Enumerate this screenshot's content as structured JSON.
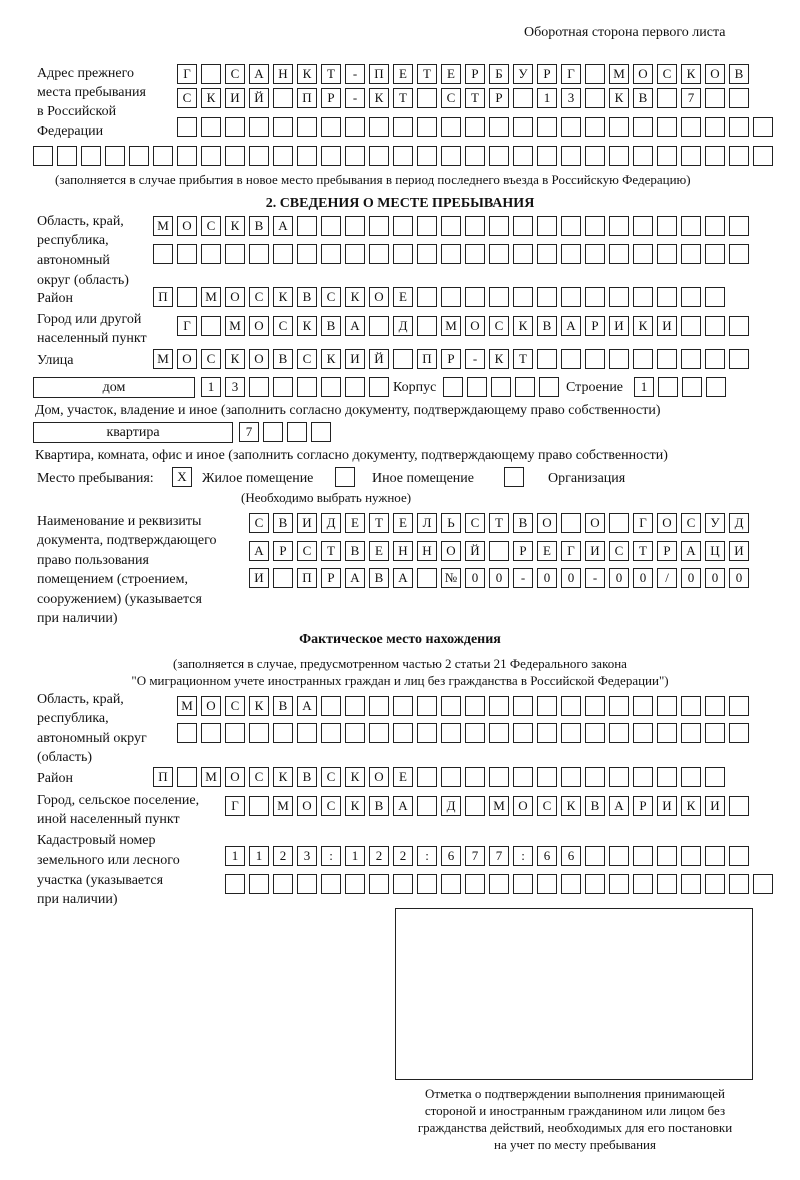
{
  "header": "Оборотная сторона первого листа",
  "prev_address": {
    "label": [
      "Адрес прежнего",
      "места пребывания",
      "в Российской",
      "Федерации"
    ],
    "rows": [
      [
        "Г",
        " ",
        "С",
        "А",
        "Н",
        "К",
        "Т",
        "-",
        "П",
        "Е",
        "Т",
        "Е",
        "Р",
        "Б",
        "У",
        "Р",
        "Г",
        " ",
        "М",
        "О",
        "С",
        "К",
        "О",
        "В"
      ],
      [
        "С",
        "К",
        "И",
        "Й",
        " ",
        "П",
        "Р",
        "-",
        "К",
        "Т",
        " ",
        "С",
        "Т",
        "Р",
        " ",
        "1",
        "3",
        " ",
        "К",
        "В",
        " ",
        "7",
        " ",
        " "
      ],
      [
        " ",
        " ",
        " ",
        " ",
        " ",
        " ",
        " ",
        " ",
        " ",
        " ",
        " ",
        " ",
        " ",
        " ",
        " ",
        " ",
        " ",
        " ",
        " ",
        " ",
        " ",
        " ",
        " ",
        " ",
        " "
      ],
      [
        " ",
        " ",
        " ",
        " ",
        " ",
        " ",
        " ",
        " ",
        " ",
        " ",
        " ",
        " ",
        " ",
        " ",
        " ",
        " ",
        " ",
        " ",
        " ",
        " ",
        " ",
        " ",
        " ",
        " ",
        " ",
        " ",
        " ",
        " ",
        " ",
        " ",
        " "
      ]
    ],
    "note": "(заполняется в случае прибытия в новое место пребывания в период последнего въезда в Российскую Федерацию)"
  },
  "section2": {
    "title": "2. СВЕДЕНИЯ О МЕСТЕ ПРЕБЫВАНИЯ",
    "region_label": [
      "Область, край,",
      "республика,",
      "автономный",
      "округ (область)"
    ],
    "region_rows": [
      [
        "М",
        "О",
        "С",
        "К",
        "В",
        "А",
        " ",
        " ",
        " ",
        " ",
        " ",
        " ",
        " ",
        " ",
        " ",
        " ",
        " ",
        " ",
        " ",
        " ",
        " ",
        " ",
        " ",
        " ",
        " "
      ],
      [
        " ",
        " ",
        " ",
        " ",
        " ",
        " ",
        " ",
        " ",
        " ",
        " ",
        " ",
        " ",
        " ",
        " ",
        " ",
        " ",
        " ",
        " ",
        " ",
        " ",
        " ",
        " ",
        " ",
        " ",
        " "
      ]
    ],
    "district_label": "Район",
    "district": [
      "П",
      " ",
      "М",
      "О",
      "С",
      "К",
      "В",
      "С",
      "К",
      "О",
      "Е",
      " ",
      " ",
      " ",
      " ",
      " ",
      " ",
      " ",
      " ",
      " ",
      " ",
      " ",
      " ",
      " "
    ],
    "city_label": [
      "Город или другой",
      "населенный пункт"
    ],
    "city": [
      "Г",
      " ",
      "М",
      "О",
      "С",
      "К",
      "В",
      "А",
      " ",
      "Д",
      " ",
      "М",
      "О",
      "С",
      "К",
      "В",
      "А",
      "Р",
      "И",
      "К",
      "И",
      " ",
      " ",
      " "
    ],
    "street_label": "Улица",
    "street": [
      "М",
      "О",
      "С",
      "К",
      "О",
      "В",
      "С",
      "К",
      "И",
      "Й",
      " ",
      "П",
      "Р",
      "-",
      "К",
      "Т",
      " ",
      " ",
      " ",
      " ",
      " ",
      " ",
      " ",
      " ",
      " "
    ],
    "house_type": "дом",
    "house": [
      "1",
      "3",
      " ",
      " ",
      " ",
      " ",
      " ",
      " "
    ],
    "corpus_label": "Корпус",
    "corpus": [
      " ",
      " ",
      " ",
      " ",
      " "
    ],
    "building_label": "Строение",
    "building": [
      "1",
      " ",
      " ",
      " "
    ],
    "house_note": "Дом, участок, владение и иное (заполнить согласно документу, подтверждающему право собственности)",
    "flat_type": "квартира",
    "flat": [
      "7",
      " ",
      " ",
      " "
    ],
    "flat_note": "Квартира, комната, офис и иное (заполнить согласно документу, подтверждающему право собственности)",
    "stay_label": "Место пребывания:",
    "options": [
      {
        "label": "Жилое помещение",
        "mark": "X"
      },
      {
        "label": "Иное помещение",
        "mark": ""
      },
      {
        "label": "Организация",
        "mark": ""
      }
    ],
    "choose_note": "(Необходимо выбрать нужное)",
    "doc_label": [
      "Наименование и реквизиты",
      "документа, подтверждающего",
      "право пользования",
      "помещением (строением,",
      "сооружением) (указывается",
      "при наличии)"
    ],
    "doc_rows": [
      [
        "С",
        "В",
        "И",
        "Д",
        "Е",
        "Т",
        "Е",
        "Л",
        "Ь",
        "С",
        "Т",
        "В",
        "О",
        " ",
        "О",
        " ",
        "Г",
        "О",
        "С",
        "У",
        "Д"
      ],
      [
        "А",
        "Р",
        "С",
        "Т",
        "В",
        "Е",
        "Н",
        "Н",
        "О",
        "Й",
        " ",
        "Р",
        "Е",
        "Г",
        "И",
        "С",
        "Т",
        "Р",
        "А",
        "Ц",
        "И"
      ],
      [
        "И",
        " ",
        "П",
        "Р",
        "А",
        "В",
        "А",
        " ",
        "№",
        "0",
        "0",
        "-",
        "0",
        "0",
        "-",
        "0",
        "0",
        "/",
        "0",
        "0",
        "0"
      ]
    ]
  },
  "actual": {
    "title": "Фактическое место нахождения",
    "note": [
      "(заполняется в случае, предусмотренном частью 2 статьи 21 Федерального закона",
      "\"О миграционном учете иностранных граждан и лиц без гражданства в Российской Федерации\")"
    ],
    "region_label": [
      "Область, край,",
      "республика,",
      "автономный округ",
      "(область)"
    ],
    "region_rows": [
      [
        "М",
        "О",
        "С",
        "К",
        "В",
        "А",
        " ",
        " ",
        " ",
        " ",
        " ",
        " ",
        " ",
        " ",
        " ",
        " ",
        " ",
        " ",
        " ",
        " ",
        " ",
        " ",
        " ",
        " "
      ],
      [
        " ",
        " ",
        " ",
        " ",
        " ",
        " ",
        " ",
        " ",
        " ",
        " ",
        " ",
        " ",
        " ",
        " ",
        " ",
        " ",
        " ",
        " ",
        " ",
        " ",
        " ",
        " ",
        " ",
        " "
      ]
    ],
    "district_label": "Район",
    "district": [
      "П",
      " ",
      "М",
      "О",
      "С",
      "К",
      "В",
      "С",
      "К",
      "О",
      "Е",
      " ",
      " ",
      " ",
      " ",
      " ",
      " ",
      " ",
      " ",
      " ",
      " ",
      " ",
      " ",
      " "
    ],
    "city_label": [
      "Город, сельское поселение,",
      "иной населенный пункт"
    ],
    "city": [
      "Г",
      " ",
      "М",
      "О",
      "С",
      "К",
      "В",
      "А",
      " ",
      "Д",
      " ",
      "М",
      "О",
      "С",
      "К",
      "В",
      "А",
      "Р",
      "И",
      "К",
      "И",
      " "
    ],
    "cadastral_label": [
      "Кадастровый номер",
      "земельного или лесного",
      "участка (указывается",
      "при наличии)"
    ],
    "cadastral_rows": [
      [
        "1",
        "1",
        "2",
        "3",
        ":",
        "1",
        "2",
        "2",
        ":",
        "6",
        "7",
        "7",
        ":",
        "6",
        "6",
        " ",
        " ",
        " ",
        " ",
        " ",
        " ",
        " "
      ],
      [
        " ",
        " ",
        " ",
        " ",
        " ",
        " ",
        " ",
        " ",
        " ",
        " ",
        " ",
        " ",
        " ",
        " ",
        " ",
        " ",
        " ",
        " ",
        " ",
        " ",
        " ",
        " ",
        " "
      ]
    ],
    "stamp_caption": [
      "Отметка о подтверждении выполнения принимающей",
      "стороной и иностранным гражданином или лицом без",
      "гражданства действий, необходимых для его постановки",
      "на учет по месту пребывания"
    ]
  }
}
